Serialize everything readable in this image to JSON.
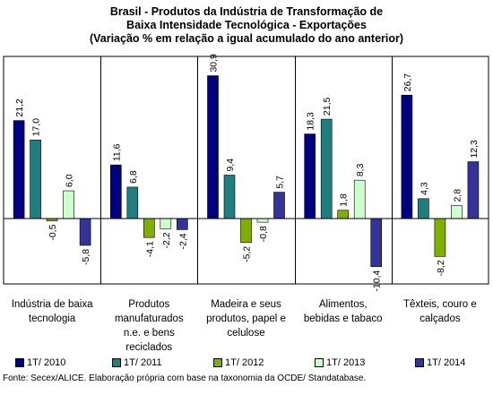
{
  "chart_data": {
    "type": "bar",
    "title": [
      "Brasil - Produtos da Indústria de Transformação de",
      "Baixa Intensidade Tecnológica - Exportações",
      "(Variação % em relação a igual acumulado do ano anterior)"
    ],
    "categories": [
      "Indústria de baixa tecnologia",
      "Produtos manufaturados n.e. e bens reciclados",
      "Madeira e seus produtos, papel e celulose",
      "Alimentos, bebidas e tabaco",
      "Têxteis, couro e calçados"
    ],
    "category_lines": [
      [
        "Indústria de baixa",
        "tecnologia"
      ],
      [
        "Produtos",
        "manufaturados",
        "n.e. e bens",
        "reciclados"
      ],
      [
        "Madeira e seus",
        "produtos, papel e",
        "celulose"
      ],
      [
        "Alimentos,",
        "bebidas e tabaco"
      ],
      [
        "Têxteis, couro e",
        "calçados"
      ]
    ],
    "series": [
      {
        "name": "1T/ 2010",
        "color": "#000080",
        "values": [
          21.2,
          11.6,
          30.9,
          18.3,
          26.7
        ]
      },
      {
        "name": "1T/ 2011",
        "color": "#1f7f7f",
        "values": [
          17.0,
          6.8,
          9.4,
          21.5,
          4.3
        ]
      },
      {
        "name": "1T/ 2012",
        "color": "#7faf00",
        "values": [
          -0.5,
          -4.1,
          -5.2,
          1.8,
          -8.2
        ]
      },
      {
        "name": "1T/ 2013",
        "color": "#ccffcc",
        "values": [
          6.0,
          -2.2,
          -0.8,
          8.3,
          2.8
        ]
      },
      {
        "name": "1T/ 2014",
        "color": "#333399",
        "values": [
          -5.8,
          -2.4,
          5.7,
          -10.4,
          12.3
        ]
      }
    ],
    "data_labels": [
      [
        "21,2",
        "17,0",
        "-0,5",
        "6,0",
        "-5,8"
      ],
      [
        "11,6",
        "6,8",
        "-4,1",
        "-2,2",
        "-2,4"
      ],
      [
        "30,9",
        "9,4",
        "-5,2",
        "-0,8",
        "5,7"
      ],
      [
        "18,3",
        "21,5",
        "1,8",
        "8,3",
        "-10,4"
      ],
      [
        "26,7",
        "4,3",
        "-8,2",
        "2,8",
        "12,3"
      ]
    ],
    "ylim": [
      -15,
      35
    ],
    "grid": false,
    "legend_position": "bottom"
  },
  "source": "Fonte: Secex/ALICE. Elaboração própria com base na taxonomia da OCDE/ Standatabase."
}
